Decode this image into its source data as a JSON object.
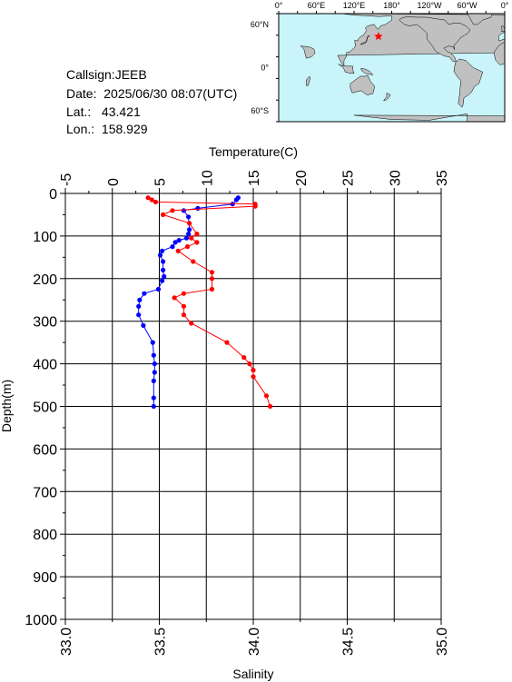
{
  "info": {
    "callsign_label": "Callsign:",
    "callsign": "JEEB",
    "date_label": "Date:",
    "date": "2025/06/30 08:07(UTC)",
    "lat_label": "Lat.:",
    "lat": "43.421",
    "lon_label": "Lon.:",
    "lon": "158.929"
  },
  "map": {
    "lon_labels": [
      "0°",
      "60°E",
      "120°E",
      "180°",
      "120°W",
      "60°W",
      "0°"
    ],
    "lat_labels": [
      "60°N",
      "0°",
      "60°S"
    ],
    "ocean_color": "#c8f4fa",
    "land_color": "#c0c0c0",
    "marker_color": "#ff0000",
    "marker_icon": "star-icon"
  },
  "chart_data": {
    "type": "line",
    "y_axis": {
      "label": "Depth(m)",
      "range": [
        0,
        1000
      ],
      "inverted": true,
      "ticks": [
        0,
        100,
        200,
        300,
        400,
        500,
        600,
        700,
        800,
        900,
        1000
      ]
    },
    "top_axis": {
      "label": "Temperature(C)",
      "range": [
        -5,
        35
      ],
      "ticks": [
        -5,
        0,
        5,
        10,
        15,
        20,
        25,
        30,
        35
      ]
    },
    "bottom_axis": {
      "label": "Salinity",
      "range": [
        33.0,
        35.0
      ],
      "ticks": [
        "33.0",
        "33.5",
        "34.0",
        "34.5",
        "35.0"
      ]
    },
    "grid": true,
    "series": [
      {
        "quantity": "temperature",
        "axis": "top",
        "color": "#0000ff",
        "points": [
          [
            13.4,
            10
          ],
          [
            13.2,
            15
          ],
          [
            12.8,
            25
          ],
          [
            9.1,
            35
          ],
          [
            7.6,
            40
          ],
          [
            8.1,
            55
          ],
          [
            8.2,
            85
          ],
          [
            8.1,
            95
          ],
          [
            7.9,
            105
          ],
          [
            7.1,
            110
          ],
          [
            6.7,
            115
          ],
          [
            6.4,
            125
          ],
          [
            5.3,
            135
          ],
          [
            5.1,
            145
          ],
          [
            5.4,
            160
          ],
          [
            5.4,
            180
          ],
          [
            5.5,
            195
          ],
          [
            5.3,
            205
          ],
          [
            4.9,
            225
          ],
          [
            3.4,
            235
          ],
          [
            2.9,
            250
          ],
          [
            2.8,
            265
          ],
          [
            2.8,
            285
          ],
          [
            3.3,
            310
          ],
          [
            4.3,
            350
          ],
          [
            4.4,
            380
          ],
          [
            4.5,
            400
          ],
          [
            4.5,
            420
          ],
          [
            4.4,
            440
          ],
          [
            4.4,
            480
          ],
          [
            4.4,
            500
          ]
        ]
      },
      {
        "quantity": "salinity",
        "axis": "bottom",
        "color": "#ff0000",
        "points": [
          [
            33.44,
            10
          ],
          [
            33.46,
            15
          ],
          [
            33.48,
            20
          ],
          [
            34.01,
            25
          ],
          [
            34.01,
            30
          ],
          [
            33.57,
            40
          ],
          [
            33.52,
            50
          ],
          [
            33.66,
            70
          ],
          [
            33.7,
            95
          ],
          [
            33.67,
            105
          ],
          [
            33.7,
            115
          ],
          [
            33.65,
            125
          ],
          [
            33.6,
            135
          ],
          [
            33.68,
            160
          ],
          [
            33.78,
            185
          ],
          [
            33.78,
            200
          ],
          [
            33.78,
            225
          ],
          [
            33.63,
            235
          ],
          [
            33.58,
            245
          ],
          [
            33.63,
            265
          ],
          [
            33.63,
            285
          ],
          [
            33.67,
            305
          ],
          [
            33.86,
            350
          ],
          [
            33.95,
            385
          ],
          [
            33.98,
            400
          ],
          [
            34.0,
            415
          ],
          [
            34.0,
            430
          ],
          [
            34.07,
            475
          ],
          [
            34.09,
            500
          ]
        ]
      }
    ]
  }
}
